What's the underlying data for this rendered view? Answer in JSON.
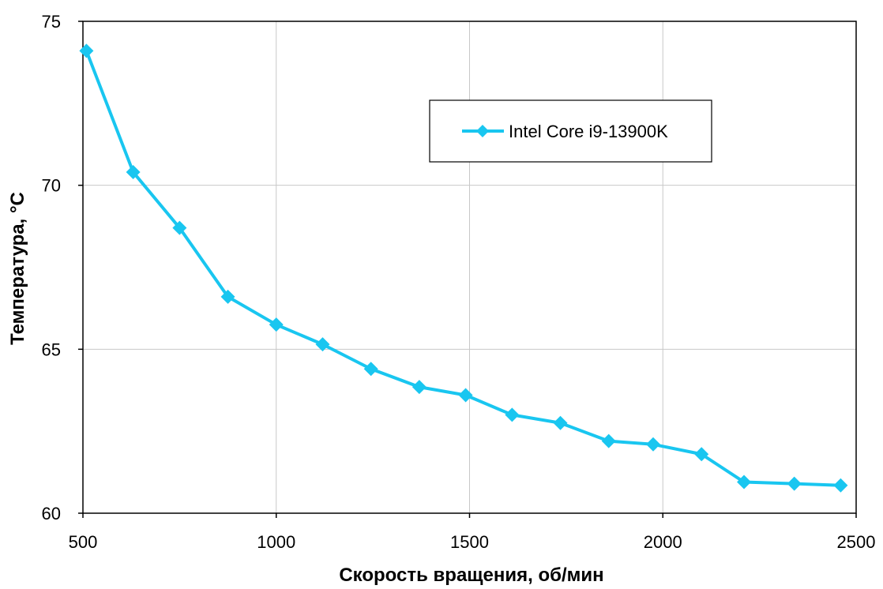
{
  "chart_data": {
    "type": "line",
    "xlabel": "Скорость вращения, об/мин",
    "ylabel": "Температура, °C",
    "xlim": [
      500,
      2500
    ],
    "ylim": [
      60,
      75
    ],
    "xticks": [
      500,
      1000,
      1500,
      2000,
      2500
    ],
    "yticks": [
      60,
      65,
      70,
      75
    ],
    "grid": true,
    "legend_position": "top-right",
    "series": [
      {
        "name": "Intel Core i9-13900K",
        "color": "#19c6f0",
        "marker": "diamond",
        "x": [
          509,
          630,
          750,
          875,
          1000,
          1120,
          1245,
          1370,
          1490,
          1610,
          1735,
          1860,
          1975,
          2100,
          2210,
          2340,
          2460
        ],
        "y": [
          74.1,
          70.4,
          68.7,
          66.6,
          65.75,
          65.15,
          64.4,
          63.85,
          63.6,
          63.0,
          62.75,
          62.2,
          62.1,
          61.8,
          60.95,
          60.9,
          60.85
        ]
      }
    ]
  }
}
